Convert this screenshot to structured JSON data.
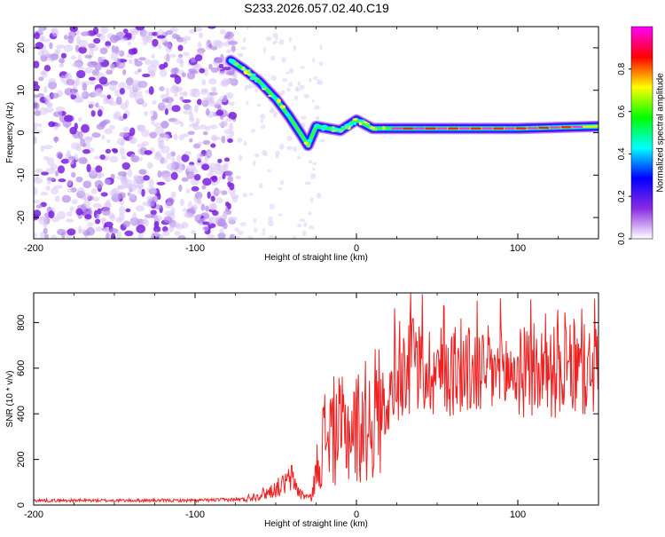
{
  "title": "S233.2026.057.02.40.C19",
  "chart_data": [
    {
      "type": "heatmap",
      "xlabel": "Height of straight line (km)",
      "ylabel": "Frequency (Hz)",
      "xlim": [
        -200,
        150
      ],
      "ylim": [
        -25,
        25
      ],
      "x_ticks": [
        -200,
        -100,
        0,
        100
      ],
      "y_ticks": [
        -20,
        -10,
        0,
        10,
        20
      ],
      "colorbar": {
        "label": "Normalized spectral amplitude",
        "range": [
          0,
          1
        ],
        "ticks": [
          "0.0",
          "0.2",
          "0.4",
          "0.6",
          "0.8"
        ],
        "colors": [
          "#ffffff",
          "#8a2be2",
          "#0000ff",
          "#00ffff",
          "#00ff00",
          "#ffff00",
          "#ff0000",
          "#ff00ff"
        ]
      },
      "trace": [
        {
          "x": -78,
          "y": 17
        },
        {
          "x": -70,
          "y": 15
        },
        {
          "x": -60,
          "y": 12
        },
        {
          "x": -50,
          "y": 8
        },
        {
          "x": -42,
          "y": 4
        },
        {
          "x": -35,
          "y": 0
        },
        {
          "x": -30,
          "y": -3
        },
        {
          "x": -25,
          "y": 1.5
        },
        {
          "x": -10,
          "y": 0.5
        },
        {
          "x": 0,
          "y": 3
        },
        {
          "x": 10,
          "y": 1
        },
        {
          "x": 50,
          "y": 1
        },
        {
          "x": 100,
          "y": 1
        },
        {
          "x": 150,
          "y": 1.5
        }
      ]
    },
    {
      "type": "line",
      "xlabel": "Height of straight line (km)",
      "ylabel": "SNR (10 * v/v)",
      "xlim": [
        -200,
        150
      ],
      "ylim": [
        0,
        930
      ],
      "x_ticks": [
        -200,
        -100,
        0,
        100
      ],
      "y_ticks": [
        0,
        200,
        400,
        600,
        800
      ],
      "color": "#ee2222",
      "envelope": [
        {
          "x": -200,
          "y": 20
        },
        {
          "x": -100,
          "y": 20
        },
        {
          "x": -70,
          "y": 25
        },
        {
          "x": -55,
          "y": 55
        },
        {
          "x": -45,
          "y": 90
        },
        {
          "x": -40,
          "y": 120
        },
        {
          "x": -35,
          "y": 50
        },
        {
          "x": -28,
          "y": 30
        },
        {
          "x": -22,
          "y": 250
        },
        {
          "x": -18,
          "y": 330
        },
        {
          "x": -10,
          "y": 320
        },
        {
          "x": 0,
          "y": 340
        },
        {
          "x": 10,
          "y": 390
        },
        {
          "x": 20,
          "y": 470
        },
        {
          "x": 30,
          "y": 600
        },
        {
          "x": 50,
          "y": 590
        },
        {
          "x": 100,
          "y": 580
        },
        {
          "x": 150,
          "y": 590
        }
      ]
    }
  ]
}
